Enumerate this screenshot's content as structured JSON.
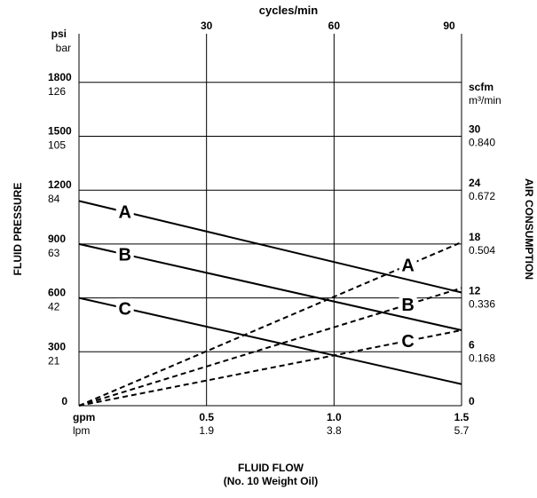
{
  "chart_data": {
    "type": "line",
    "top_axis": {
      "title": "cycles/min",
      "ticks": [
        {
          "label": "30",
          "flow_gpm": 0.5
        },
        {
          "label": "60",
          "flow_gpm": 1.0
        },
        {
          "label": "90",
          "flow_gpm": 1.5
        }
      ]
    },
    "x_axis": {
      "units": {
        "primary": "gpm",
        "secondary": "lpm"
      },
      "range_gpm": [
        0,
        1.5
      ],
      "ticks": [
        {
          "primary": "0.5",
          "secondary": "1.9",
          "value": 0.5
        },
        {
          "primary": "1.0",
          "secondary": "3.8",
          "value": 1.0
        },
        {
          "primary": "1.5",
          "secondary": "5.7",
          "value": 1.5
        }
      ],
      "title_line1": "FLUID FLOW",
      "title_line2": "(No. 10 Weight Oil)"
    },
    "y_left": {
      "title": "FLUID PRESSURE",
      "units": {
        "primary": "psi",
        "secondary": "bar"
      },
      "range_psi": [
        0,
        2100
      ],
      "ticks": [
        {
          "primary": "0",
          "secondary": "",
          "value": 0
        },
        {
          "primary": "300",
          "secondary": "21",
          "value": 300
        },
        {
          "primary": "600",
          "secondary": "42",
          "value": 600
        },
        {
          "primary": "900",
          "secondary": "63",
          "value": 900
        },
        {
          "primary": "1200",
          "secondary": "84",
          "value": 1200
        },
        {
          "primary": "1500",
          "secondary": "105",
          "value": 1500
        },
        {
          "primary": "1800",
          "secondary": "126",
          "value": 1800
        }
      ]
    },
    "y_right": {
      "title": "AIR CONSUMPTION",
      "units": {
        "primary": "scfm",
        "secondary": "m³/min"
      },
      "range_scfm": [
        0,
        36
      ],
      "ticks": [
        {
          "primary": "0",
          "secondary": "",
          "value": 0
        },
        {
          "primary": "6",
          "secondary": "0.168",
          "value": 6
        },
        {
          "primary": "12",
          "secondary": "0.336",
          "value": 12
        },
        {
          "primary": "18",
          "secondary": "0.504",
          "value": 18
        },
        {
          "primary": "24",
          "secondary": "0.672",
          "value": 24
        },
        {
          "primary": "30",
          "secondary": "0.840",
          "value": 30
        }
      ]
    },
    "grid": true,
    "pressure_series": [
      {
        "name": "A",
        "axis": "left",
        "style": "solid",
        "x": [
          0,
          1.5
        ],
        "y": [
          1140,
          630
        ],
        "label_x": 0.18
      },
      {
        "name": "B",
        "axis": "left",
        "style": "solid",
        "x": [
          0,
          1.5
        ],
        "y": [
          900,
          420
        ],
        "label_x": 0.18
      },
      {
        "name": "C",
        "axis": "left",
        "style": "solid",
        "x": [
          0,
          1.5
        ],
        "y": [
          600,
          120
        ],
        "label_x": 0.18
      }
    ],
    "air_series": [
      {
        "name": "A",
        "axis": "right",
        "style": "dashed",
        "x": [
          0,
          1.5
        ],
        "y": [
          0,
          18.2
        ],
        "label_x": 1.29
      },
      {
        "name": "B",
        "axis": "right",
        "style": "dashed",
        "x": [
          0,
          1.5
        ],
        "y": [
          0,
          13.1
        ],
        "label_x": 1.29
      },
      {
        "name": "C",
        "axis": "right",
        "style": "dashed",
        "x": [
          0,
          1.5
        ],
        "y": [
          0,
          8.4
        ],
        "label_x": 1.29
      }
    ]
  }
}
